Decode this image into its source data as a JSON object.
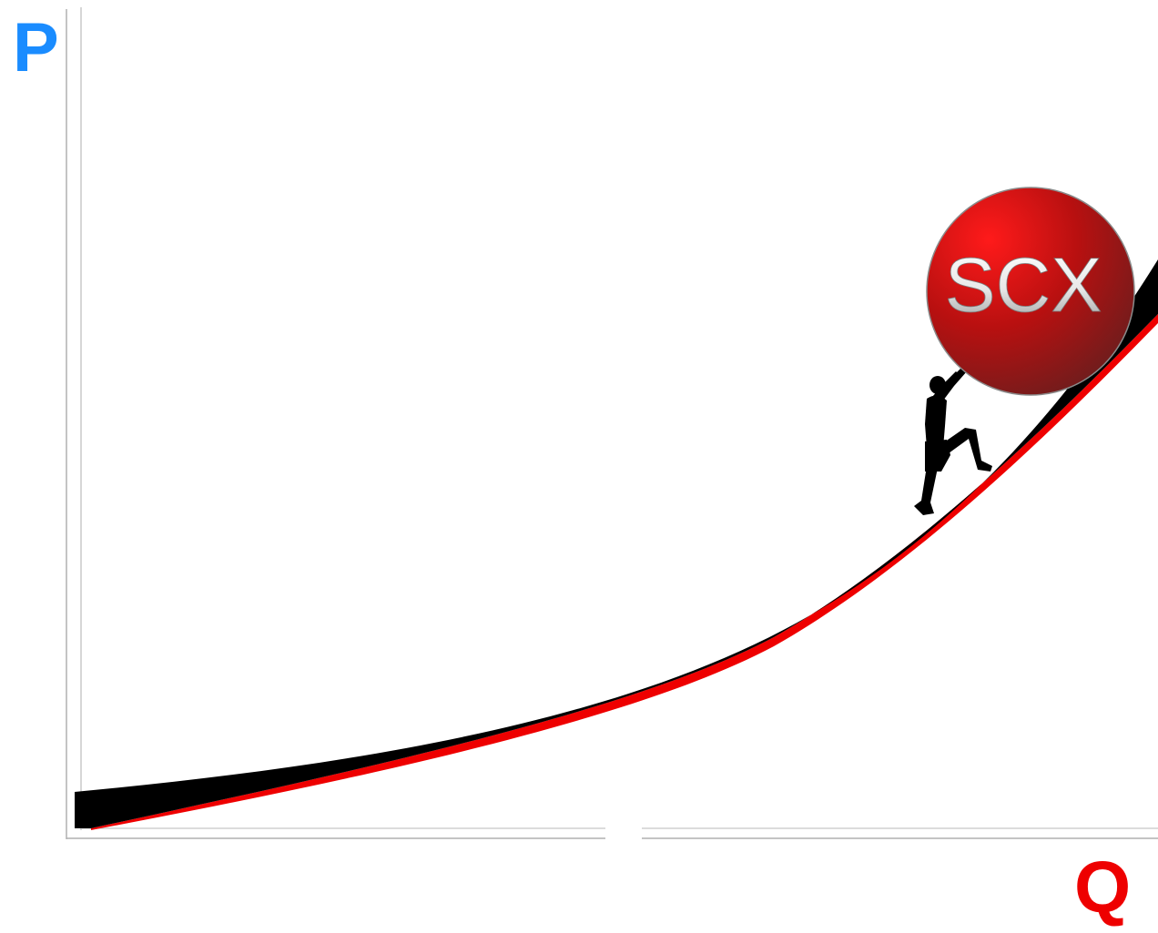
{
  "diagram": {
    "y_axis_label": "P",
    "x_axis_label": "Q",
    "ball_label": "SCX",
    "colors": {
      "y_axis_label": "#1a8cff",
      "x_axis_label": "#ee0000",
      "curve": "#000000",
      "curve_edge": "#ee0000",
      "ball_light": "#ff1a1a",
      "ball_mid": "#b81010",
      "ball_dark": "#5a2020",
      "ball_text": "#e8e8e8",
      "axis_line": "#999999",
      "figure": "#000000"
    },
    "icons": {
      "figure": "person-pushing-icon"
    }
  }
}
